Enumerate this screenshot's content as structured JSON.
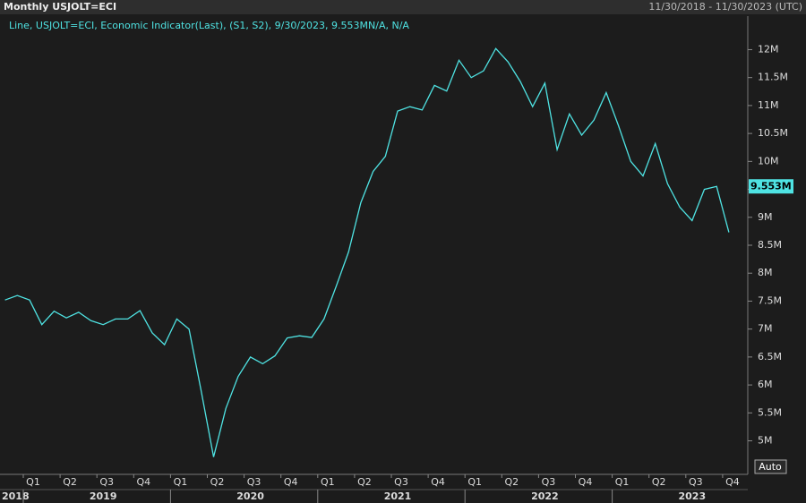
{
  "header": {
    "title": "Monthly USJOLT=ECI",
    "range": "11/30/2018 - 11/30/2023 (UTC)"
  },
  "chart_data": {
    "type": "line",
    "legend": "Line, USJOLT=ECI, Economic Indicator(Last), (S1, S2), 9/30/2023, 9.553MN/A, N/A",
    "categories": [
      null,
      null,
      "Q1",
      null,
      null,
      "Q2",
      null,
      null,
      "Q3",
      null,
      null,
      "Q4",
      null,
      null,
      "Q1",
      null,
      null,
      "Q2",
      null,
      null,
      "Q3",
      null,
      null,
      "Q4",
      null,
      null,
      "Q1",
      null,
      null,
      "Q2",
      null,
      null,
      "Q3",
      null,
      null,
      "Q4",
      null,
      null,
      "Q1",
      null,
      null,
      "Q2",
      null,
      null,
      "Q3",
      null,
      null,
      "Q4",
      null,
      null,
      "Q1",
      null,
      null,
      "Q2",
      null,
      null,
      "Q3",
      null,
      null,
      "Q4"
    ],
    "years": [
      "2018",
      null,
      null,
      null,
      null,
      null,
      null,
      null,
      "2019",
      null,
      null,
      null,
      null,
      null,
      null,
      null,
      null,
      null,
      null,
      null,
      "2020",
      null,
      null,
      null,
      null,
      null,
      null,
      null,
      null,
      null,
      null,
      null,
      "2021",
      null,
      null,
      null,
      null,
      null,
      null,
      null,
      null,
      null,
      null,
      null,
      "2022",
      null,
      null,
      null,
      null,
      null,
      null,
      null,
      null,
      null,
      null,
      null,
      "2023",
      null,
      null,
      null
    ],
    "series": [
      {
        "name": "USJOLT=ECI",
        "color": "#4fe3e3",
        "values": [
          7.52,
          7.6,
          7.52,
          7.08,
          7.32,
          7.2,
          7.3,
          7.15,
          7.08,
          7.18,
          7.18,
          7.33,
          6.93,
          6.72,
          7.18,
          7.0,
          5.88,
          4.71,
          5.58,
          6.15,
          6.5,
          6.38,
          6.52,
          6.84,
          6.88,
          6.85,
          7.18,
          7.77,
          8.38,
          9.26,
          9.82,
          10.09,
          10.9,
          10.98,
          10.92,
          11.36,
          11.26,
          11.81,
          11.5,
          11.62,
          12.02,
          11.78,
          11.43,
          10.98,
          11.4,
          10.21,
          10.85,
          10.47,
          10.74,
          11.23,
          10.64,
          10.0,
          9.74,
          10.32,
          9.6,
          9.18,
          8.94,
          9.5,
          9.553,
          8.73
        ]
      }
    ],
    "last_value": {
      "value": 9.553,
      "label": "9.553M"
    },
    "ylim": [
      4.4,
      12.6
    ],
    "yticks": [
      {
        "value": 5,
        "label": "5M"
      },
      {
        "value": 5.5,
        "label": "5.5M"
      },
      {
        "value": 6,
        "label": "6M"
      },
      {
        "value": 6.5,
        "label": "6.5M"
      },
      {
        "value": 7,
        "label": "7M"
      },
      {
        "value": 7.5,
        "label": "7.5M"
      },
      {
        "value": 8,
        "label": "8M"
      },
      {
        "value": 8.5,
        "label": "8.5M"
      },
      {
        "value": 9,
        "label": "9M"
      },
      {
        "value": 9.5,
        "label": "9.5M"
      },
      {
        "value": 10,
        "label": "10M"
      },
      {
        "value": 10.5,
        "label": "10.5M"
      },
      {
        "value": 11,
        "label": "11M"
      },
      {
        "value": 11.5,
        "label": "11.5M"
      },
      {
        "value": 12,
        "label": "12M"
      }
    ],
    "scale_button": "Auto"
  }
}
